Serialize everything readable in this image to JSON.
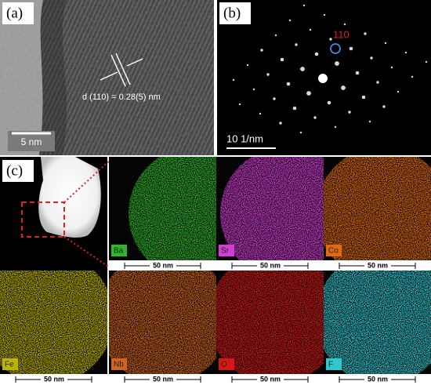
{
  "panels": [
    {
      "label": "(a)",
      "annotation": "d (110) = 0.28(5) nm",
      "scale_bar": "5 nm"
    },
    {
      "label": "(b)",
      "annotation": "110",
      "scale_bar": "10 1/nm"
    },
    {
      "label": "(c)"
    }
  ],
  "maps": [
    {
      "element": "Ba",
      "color": "#2fb52a",
      "scale_bar": "50 nm"
    },
    {
      "element": "Sr",
      "color": "#d33cd6",
      "scale_bar": "50 nm"
    },
    {
      "element": "Co",
      "color": "#e06a12",
      "scale_bar": "50 nm"
    },
    {
      "element": "Fe",
      "color": "#bdb400",
      "scale_bar": "50 nm"
    },
    {
      "element": "Nb",
      "color": "#d2641e",
      "scale_bar": "50 nm"
    },
    {
      "element": "O",
      "color": "#d81616",
      "scale_bar": "50 nm"
    },
    {
      "element": "F",
      "color": "#2fc7cf",
      "scale_bar": "50 nm"
    }
  ]
}
